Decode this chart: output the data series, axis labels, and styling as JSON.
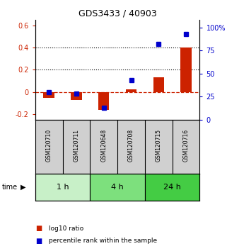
{
  "title": "GDS3433 / 40903",
  "samples": [
    "GSM120710",
    "GSM120711",
    "GSM120648",
    "GSM120708",
    "GSM120715",
    "GSM120716"
  ],
  "log10_ratio": [
    -0.055,
    -0.075,
    -0.165,
    0.022,
    0.13,
    0.4
  ],
  "percentile_rank": [
    30,
    28,
    13,
    43,
    82,
    93
  ],
  "time_groups": [
    {
      "label": "1 h",
      "indices": [
        0,
        1
      ],
      "color": "#c8f0c8"
    },
    {
      "label": "4 h",
      "indices": [
        2,
        3
      ],
      "color": "#7de07d"
    },
    {
      "label": "24 h",
      "indices": [
        4,
        5
      ],
      "color": "#44cc44"
    }
  ],
  "bar_color": "#cc2200",
  "point_color": "#0000cc",
  "ylim_left": [
    -0.25,
    0.65
  ],
  "ylim_right": [
    0,
    108.33
  ],
  "yticks_left": [
    -0.2,
    0.0,
    0.2,
    0.4,
    0.6
  ],
  "yticks_left_labels": [
    "-0.2",
    "0",
    "0.2",
    "0.4",
    "0.6"
  ],
  "yticks_right": [
    0,
    25,
    50,
    75,
    100
  ],
  "yticks_right_labels": [
    "0",
    "25",
    "50",
    "75",
    "100%"
  ],
  "hlines": [
    0.2,
    0.4
  ],
  "sample_bg_color": "#d0d0d0",
  "legend_red": "log10 ratio",
  "legend_blue": "percentile rank within the sample",
  "legend_sq_size": 6
}
